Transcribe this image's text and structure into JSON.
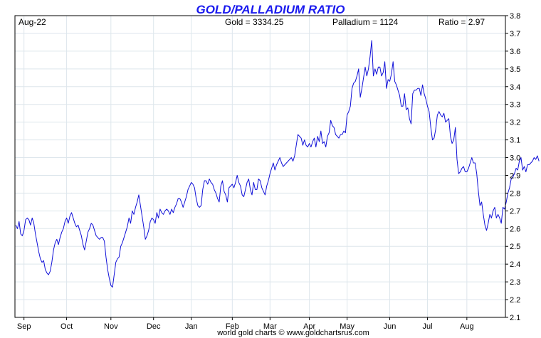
{
  "colors": {
    "title": "#1a1aee",
    "line": "#1010d8",
    "grid": "#dde6ec",
    "axis": "#000000"
  },
  "header": {
    "title": "GOLD/PALLADIUM RATIO",
    "period": "Aug-22",
    "gold": "Gold = 3334.25",
    "palladium": "Palladium = 1124",
    "ratio": "Ratio = 2.97"
  },
  "footer": {
    "credit": "world gold charts © www.goldchartsrus.com"
  },
  "chart_data": {
    "type": "line",
    "title": "GOLD/PALLADIUM RATIO",
    "ylim": [
      2.1,
      3.8
    ],
    "yticks": [
      "2.1",
      "2.2",
      "2.3",
      "2.4",
      "2.5",
      "2.6",
      "2.7",
      "2.8",
      "2.9",
      "3.0",
      "3.1",
      "3.2",
      "3.3",
      "3.4",
      "3.5",
      "3.6",
      "3.7",
      "3.8"
    ],
    "ytick_values": [
      2.1,
      2.2,
      2.3,
      2.4,
      2.5,
      2.6,
      2.7,
      2.8,
      2.9,
      3.0,
      3.1,
      3.2,
      3.3,
      3.4,
      3.5,
      3.6,
      3.7,
      3.8
    ],
    "xticks": [
      "Sep",
      "Oct",
      "Nov",
      "Dec",
      "Jan",
      "Feb",
      "Mar",
      "Apr",
      "May",
      "Jun",
      "Jul",
      "Aug"
    ],
    "xtick_day_index": [
      5,
      31,
      58,
      84,
      107,
      132,
      155,
      179,
      202,
      228,
      251,
      275
    ],
    "x_day_count": 299,
    "grid": true,
    "series": [
      {
        "values": [
          2.62,
          2.6,
          2.64,
          2.57,
          2.56,
          2.59,
          2.65,
          2.66,
          2.65,
          2.62,
          2.66,
          2.63,
          2.57,
          2.52,
          2.47,
          2.43,
          2.41,
          2.42,
          2.37,
          2.35,
          2.34,
          2.36,
          2.41,
          2.48,
          2.52,
          2.54,
          2.51,
          2.55,
          2.58,
          2.6,
          2.64,
          2.66,
          2.63,
          2.67,
          2.69,
          2.66,
          2.63,
          2.61,
          2.62,
          2.59,
          2.56,
          2.51,
          2.48,
          2.53,
          2.58,
          2.6,
          2.63,
          2.62,
          2.59,
          2.56,
          2.55,
          2.54,
          2.55,
          2.55,
          2.53,
          2.44,
          2.37,
          2.32,
          2.28,
          2.27,
          2.34,
          2.41,
          2.43,
          2.44,
          2.5,
          2.52,
          2.55,
          2.58,
          2.61,
          2.66,
          2.63,
          2.7,
          2.68,
          2.72,
          2.75,
          2.79,
          2.73,
          2.67,
          2.61,
          2.54,
          2.56,
          2.59,
          2.64,
          2.66,
          2.65,
          2.63,
          2.69,
          2.66,
          2.71,
          2.69,
          2.68,
          2.7,
          2.71,
          2.7,
          2.68,
          2.71,
          2.69,
          2.72,
          2.74,
          2.77,
          2.77,
          2.75,
          2.72,
          2.75,
          2.78,
          2.82,
          2.84,
          2.86,
          2.85,
          2.83,
          2.77,
          2.73,
          2.72,
          2.73,
          2.82,
          2.87,
          2.87,
          2.85,
          2.88,
          2.86,
          2.85,
          2.82,
          2.8,
          2.77,
          2.75,
          2.84,
          2.87,
          2.81,
          2.79,
          2.75,
          2.83,
          2.84,
          2.85,
          2.83,
          2.86,
          2.9,
          2.86,
          2.84,
          2.79,
          2.78,
          2.82,
          2.86,
          2.88,
          2.82,
          2.79,
          2.86,
          2.82,
          2.82,
          2.88,
          2.87,
          2.83,
          2.81,
          2.79,
          2.84,
          2.87,
          2.91,
          2.94,
          2.97,
          2.93,
          2.96,
          2.98,
          3.0,
          2.97,
          2.95,
          2.96,
          2.97,
          2.98,
          2.99,
          3.0,
          2.98,
          3.01,
          3.07,
          3.13,
          3.12,
          3.11,
          3.07,
          3.1,
          3.07,
          3.06,
          3.08,
          3.06,
          3.09,
          3.11,
          3.06,
          3.12,
          3.09,
          3.15,
          3.08,
          3.09,
          3.06,
          3.12,
          3.14,
          3.21,
          3.18,
          3.17,
          3.13,
          3.12,
          3.11,
          3.13,
          3.13,
          3.15,
          3.14,
          3.24,
          3.26,
          3.29,
          3.39,
          3.42,
          3.43,
          3.46,
          3.5,
          3.34,
          3.39,
          3.45,
          3.51,
          3.46,
          3.5,
          3.57,
          3.66,
          3.46,
          3.5,
          3.47,
          3.51,
          3.51,
          3.46,
          3.48,
          3.54,
          3.39,
          3.44,
          3.43,
          3.47,
          3.54,
          3.43,
          3.41,
          3.38,
          3.35,
          3.29,
          3.29,
          3.36,
          3.27,
          3.28,
          3.22,
          3.19,
          3.36,
          3.38,
          3.38,
          3.39,
          3.39,
          3.35,
          3.41,
          3.36,
          3.33,
          3.29,
          3.26,
          3.17,
          3.1,
          3.11,
          3.16,
          3.24,
          3.26,
          3.24,
          3.23,
          3.25,
          3.2,
          3.21,
          3.22,
          3.12,
          3.08,
          3.1,
          3.17,
          2.99,
          2.91,
          2.92,
          2.94,
          2.95,
          2.92,
          2.92,
          2.94,
          2.97,
          3.0,
          2.97,
          2.97,
          2.91,
          2.81,
          2.73,
          2.75,
          2.68,
          2.62,
          2.59,
          2.63,
          2.68,
          2.66,
          2.7,
          2.72,
          2.66,
          2.68,
          2.66,
          2.63,
          2.72,
          2.71,
          2.75,
          2.8,
          2.83,
          2.88,
          2.89,
          2.91,
          2.94,
          2.93,
          2.98,
          3.0,
          2.93,
          2.95,
          2.92,
          2.96,
          2.96,
          2.97,
          2.98,
          3.0,
          2.99,
          3.01,
          2.98
        ]
      }
    ]
  }
}
